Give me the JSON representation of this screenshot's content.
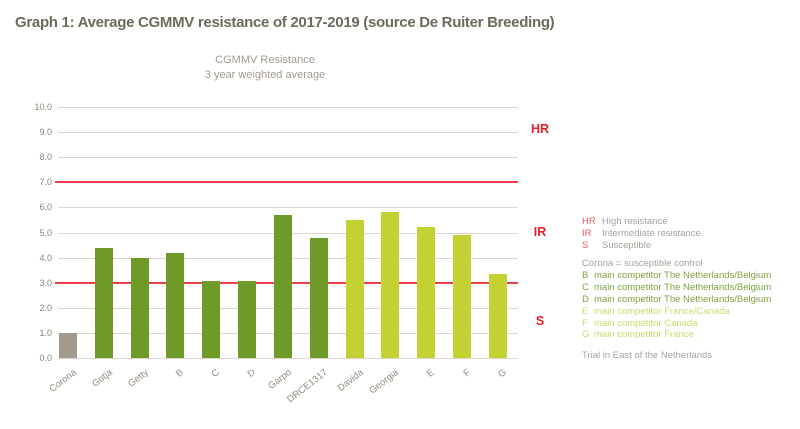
{
  "title": "Graph 1: Average CGMMV resistance of 2017-2019 (source De Ruiter Breeding)",
  "chart_data": {
    "type": "bar",
    "subtitle_lines": [
      "CGMMV Resistance",
      "3 year weighted average"
    ],
    "categories": [
      "Corona",
      "Gotja",
      "Getty",
      "B",
      "C",
      "D",
      "Garpo",
      "DRCE1317",
      "Davida",
      "Georgia",
      "E",
      "F",
      "G"
    ],
    "values": [
      1.0,
      4.4,
      4.0,
      4.2,
      3.05,
      3.05,
      5.7,
      4.8,
      5.5,
      5.8,
      5.2,
      4.9,
      3.35
    ],
    "bar_groups": [
      "control",
      "dark",
      "dark",
      "dark",
      "dark",
      "dark",
      "dark",
      "dark",
      "light",
      "light",
      "light",
      "light",
      "light"
    ],
    "ylim": [
      0,
      10
    ],
    "ytick_step": 1,
    "grid": true,
    "reference_lines": [
      {
        "value": 7.0,
        "color": "#ed3f4b"
      },
      {
        "value": 3.0,
        "color": "#ed3f4b"
      }
    ],
    "zone_labels": [
      {
        "text": "HR",
        "y_value": 9.1
      },
      {
        "text": "IR",
        "y_value": 5.0
      },
      {
        "text": "S",
        "y_value": 1.45
      }
    ],
    "colors": {
      "control": "#a39a8e",
      "dark": "#6e9b28",
      "light": "#c3d232",
      "grid": "#dcd7d0",
      "reference": "#ed3f4b",
      "zone_text": "#e41f2a"
    }
  },
  "legend": {
    "resistance": [
      {
        "key": "HR",
        "label": "High resistance"
      },
      {
        "key": "IR",
        "label": "Intermediate resistance"
      },
      {
        "key": "S",
        "label": "Susceptible"
      }
    ],
    "corona_note": "Corona = susceptible control",
    "competitors": [
      {
        "key": "B",
        "label": "main competitor The Netherlands/Belgium",
        "group": "dark"
      },
      {
        "key": "C",
        "label": "main competitor The Netherlands/Belgium",
        "group": "dark"
      },
      {
        "key": "D",
        "label": "main competitor The Netherlands/Belgium",
        "group": "dark"
      },
      {
        "key": "E",
        "label": "main competitor  France/Canada",
        "group": "light"
      },
      {
        "key": "F",
        "label": "main competitor Canada",
        "group": "light"
      },
      {
        "key": "G",
        "label": "main competitor France",
        "group": "light"
      }
    ],
    "trial_note": "Trial in East of the Netherlands"
  }
}
